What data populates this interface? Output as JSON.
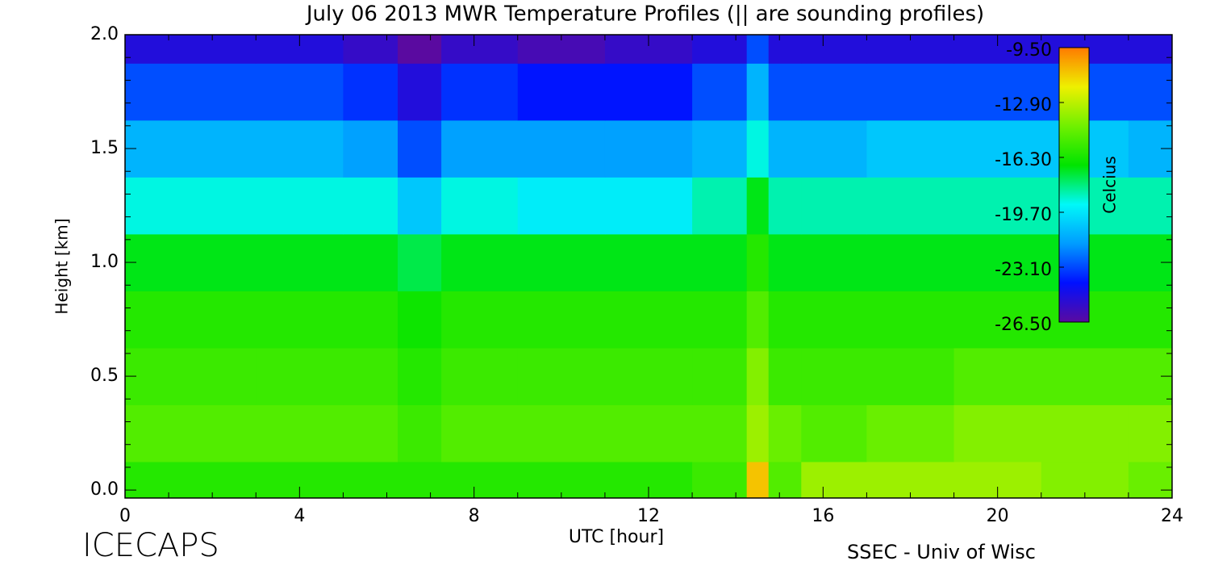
{
  "chart_data": {
    "type": "heatmap",
    "title": "July 06 2013 MWR Temperature Profiles (|| are sounding profiles)",
    "xlabel": "UTC [hour]",
    "ylabel": "Height [km]",
    "colorbar_label": "Celcius",
    "footer_left": "ICECAPS",
    "footer_right": "SSEC - Univ of Wisc",
    "x": [
      0,
      2,
      4,
      6,
      6.5,
      8,
      10,
      12,
      14,
      14.5,
      15,
      16,
      18,
      20,
      22,
      24
    ],
    "y": [
      0,
      0.25,
      0.5,
      0.75,
      1.0,
      1.25,
      1.5,
      1.75,
      2.0
    ],
    "z": [
      [
        -16,
        -16,
        -16,
        -16,
        -16,
        -16,
        -16,
        -16,
        -15.5,
        -11,
        -15,
        -13.5,
        -13.5,
        -13.5,
        -14,
        -14.5
      ],
      [
        -15,
        -15,
        -15,
        -15,
        -15.5,
        -15,
        -15,
        -15,
        -15,
        -13.5,
        -14.5,
        -15,
        -14.5,
        -14,
        -14,
        -14
      ],
      [
        -15.5,
        -15.5,
        -15.5,
        -15.5,
        -16,
        -15.5,
        -15.5,
        -15.5,
        -15.5,
        -14,
        -15.5,
        -15.5,
        -15.5,
        -15,
        -15,
        -15
      ],
      [
        -16,
        -16,
        -16,
        -16,
        -16.5,
        -16,
        -16,
        -16,
        -16,
        -15,
        -16,
        -16,
        -16,
        -16,
        -16,
        -16
      ],
      [
        -17,
        -17,
        -17,
        -17,
        -17.5,
        -17,
        -17,
        -17,
        -17,
        -16,
        -17,
        -17,
        -17,
        -17,
        -17,
        -17
      ],
      [
        -19,
        -19,
        -19,
        -19,
        -20.5,
        -19,
        -19.5,
        -19.5,
        -18.5,
        -17,
        -18.5,
        -18.5,
        -18.5,
        -18.5,
        -18.5,
        -18.5
      ],
      [
        -21,
        -21,
        -21,
        -21.5,
        -23,
        -21.5,
        -21.5,
        -21.5,
        -21,
        -19,
        -21,
        -21,
        -20.5,
        -20.5,
        -20.5,
        -21
      ],
      [
        -23,
        -23,
        -23,
        -23.5,
        -25,
        -23.5,
        -24,
        -24,
        -23,
        -21,
        -23,
        -23,
        -23,
        -23,
        -23,
        -23
      ],
      [
        -25,
        -25,
        -25,
        -25.5,
        -26.5,
        -25.5,
        -26,
        -25.5,
        -25,
        -23,
        -25,
        -25,
        -25,
        -25,
        -25,
        -25
      ]
    ],
    "xlim": [
      0,
      24
    ],
    "xticks": [
      0,
      4,
      8,
      12,
      16,
      20,
      24
    ],
    "ylim": [
      -0.035,
      2.0
    ],
    "yticks": [
      {
        "value": 0,
        "label": "0.0"
      },
      0.5,
      {
        "value": 1,
        "label": "1.0"
      },
      1.5,
      {
        "value": 2,
        "label": "2.0"
      }
    ],
    "x_minor_per_major": 4,
    "y_minor_per_major": 5,
    "clim": [
      -26.5,
      -9.5
    ],
    "cticks": [
      {
        "value": -9.5,
        "label": "-9.50"
      },
      {
        "value": -12.9,
        "label": "-12.90"
      },
      {
        "value": -16.3,
        "label": "-16.30"
      },
      {
        "value": -19.7,
        "label": "-19.70"
      },
      {
        "value": -23.1,
        "label": "-23.10"
      },
      {
        "value": -26.5,
        "label": "-26.50"
      }
    ],
    "colormap": [
      "#5a0aa0",
      "#0010ff",
      "#009cff",
      "#00f8f8",
      "#00e400",
      "#70f000",
      "#eef000",
      "#ff7a00"
    ]
  }
}
